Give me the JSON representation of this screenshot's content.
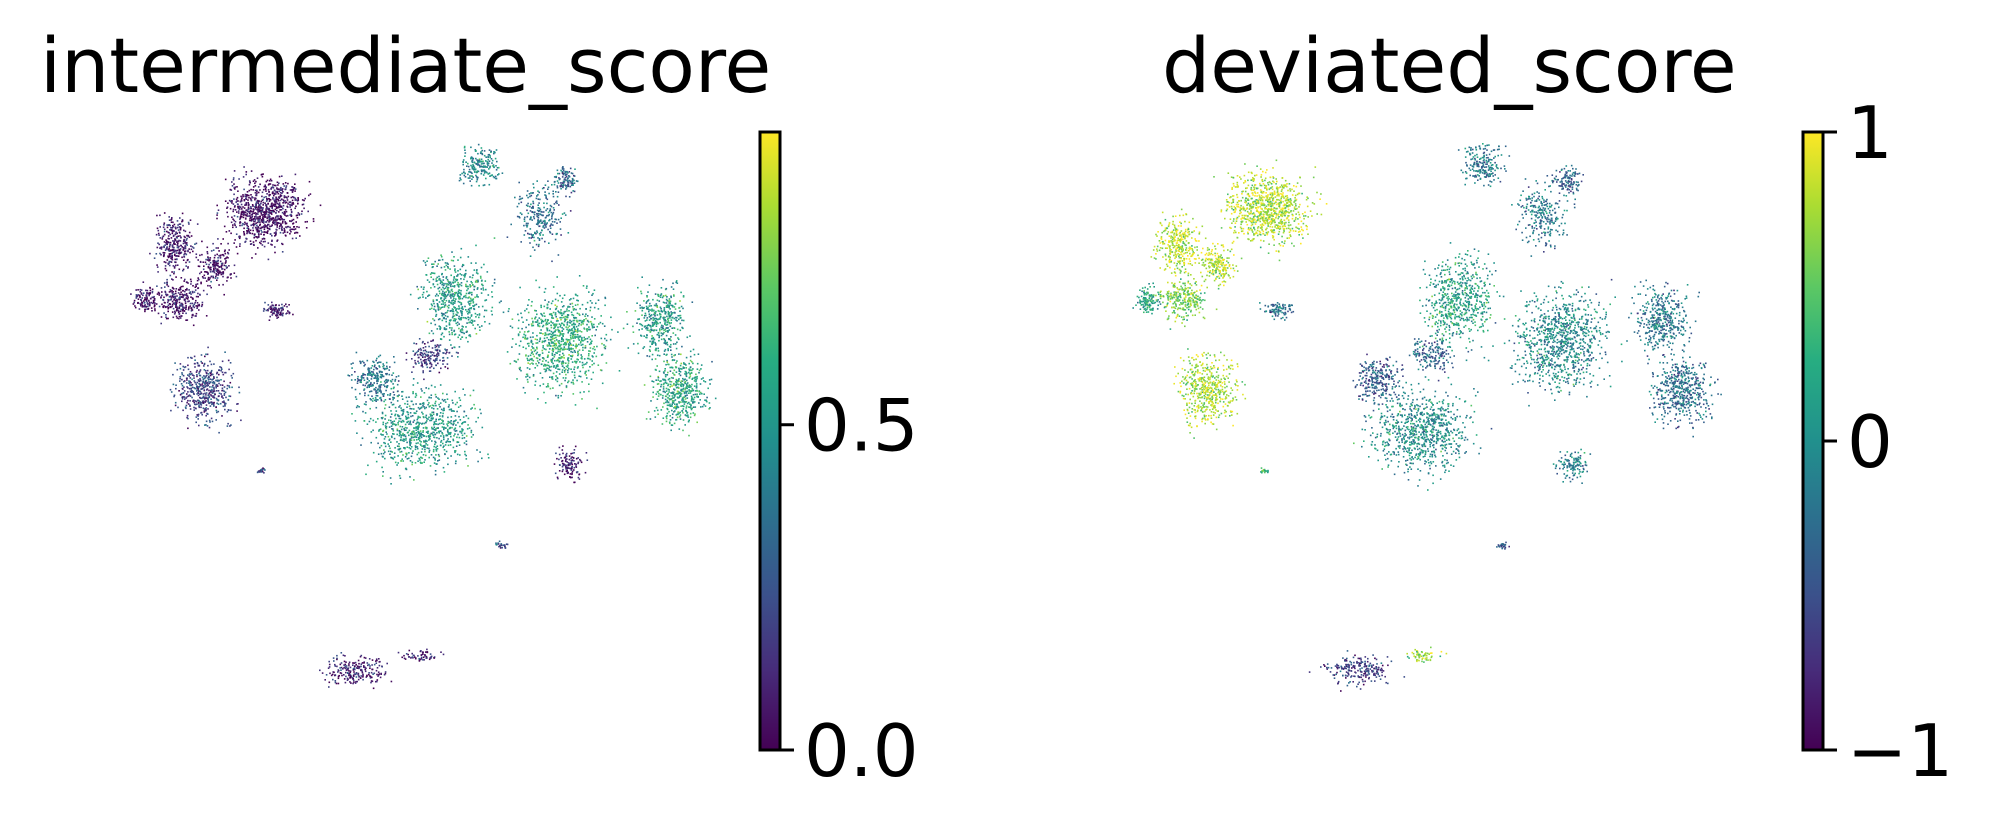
{
  "chart_data": [
    {
      "type": "scatter",
      "title": "intermediate_score",
      "colormap": "viridis",
      "colorbar": {
        "range": [
          0.0,
          0.95
        ],
        "ticks": [
          0.0,
          0.5
        ],
        "tick_labels": [
          "0.0",
          "0.5"
        ]
      },
      "grid": false,
      "legend": "colorbar-right"
    },
    {
      "type": "scatter",
      "title": "deviated_score",
      "colormap": "viridis",
      "colorbar": {
        "range": [
          -1,
          1
        ],
        "ticks": [
          -1,
          0,
          1
        ],
        "tick_labels": [
          "−1",
          "0",
          "1"
        ]
      },
      "grid": false,
      "legend": "colorbar-right"
    }
  ],
  "colors": {
    "viridis_low": "#440154",
    "viridis_mid": "#21918c",
    "viridis_high": "#fde725"
  }
}
